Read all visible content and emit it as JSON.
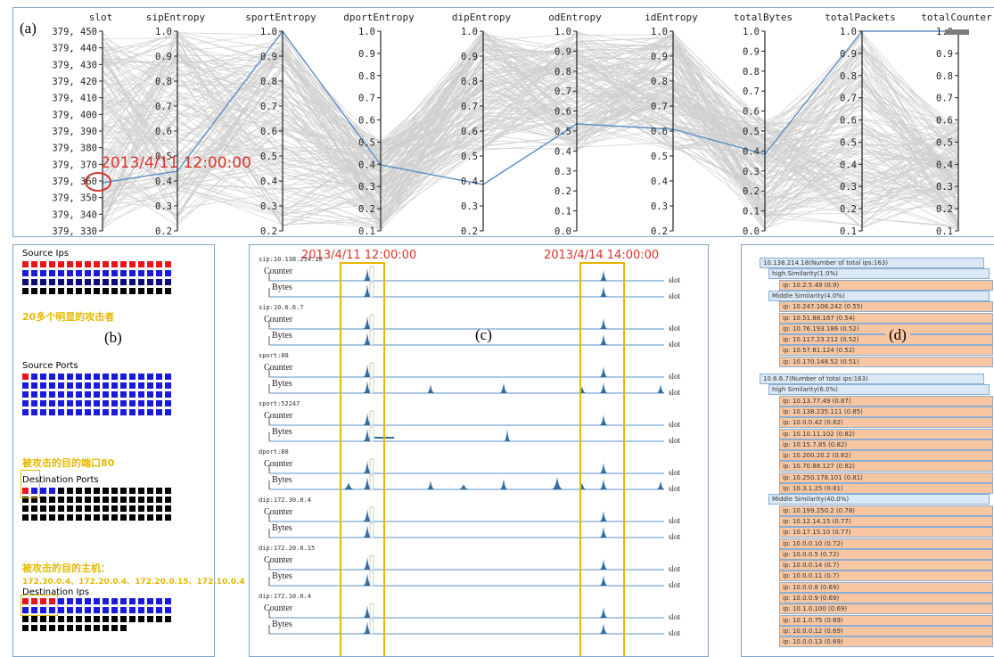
{
  "panel_labels": {
    "a": "(a)",
    "b": "(b)",
    "c": "(c)",
    "d": "(d)"
  },
  "parallel": {
    "axes": [
      {
        "name": "slot",
        "ticks": [
          "379, 450",
          "379, 440",
          "379, 430",
          "379, 420",
          "379, 410",
          "379, 400",
          "379, 390",
          "379, 380",
          "379, 370",
          "379, 360",
          "379, 350",
          "379, 340",
          "379, 330"
        ]
      },
      {
        "name": "sipEntropy",
        "ticks": [
          "1.0",
          "0.9",
          "0.8",
          "0.7",
          "0.6",
          "0.5",
          "0.4",
          "0.3",
          "0.2"
        ]
      },
      {
        "name": "sportEntropy",
        "ticks": [
          "1.0",
          "0.9",
          "0.8",
          "0.7",
          "0.6",
          "0.5",
          "0.4",
          "0.3",
          "0.2"
        ]
      },
      {
        "name": "dportEntropy",
        "ticks": [
          "1.0",
          "0.9",
          "0.8",
          "0.7",
          "0.6",
          "0.5",
          "0.4",
          "0.3",
          "0.2",
          "0.1"
        ]
      },
      {
        "name": "dipEntropy",
        "ticks": [
          "1.0",
          "0.9",
          "0.8",
          "0.7",
          "0.6",
          "0.5",
          "0.4",
          "0.3",
          "0.2"
        ]
      },
      {
        "name": "odEntropy",
        "ticks": [
          "1.0",
          "0.9",
          "0.8",
          "0.7",
          "0.6",
          "0.5",
          "0.4",
          "0.3",
          "0.2",
          "0.1",
          "0.0"
        ]
      },
      {
        "name": "idEntropy",
        "ticks": [
          "1.0",
          "0.9",
          "0.8",
          "0.7",
          "0.6",
          "0.5",
          "0.4",
          "0.3",
          "0.2"
        ]
      },
      {
        "name": "totalBytes",
        "ticks": [
          "1.0",
          "0.9",
          "0.8",
          "0.7",
          "0.6",
          "0.5",
          "0.4",
          "0.3",
          "0.2",
          "0.1",
          "0.0"
        ]
      },
      {
        "name": "totalPackets",
        "ticks": [
          "1.0",
          "0.9",
          "0.8",
          "0.7",
          "0.6",
          "0.5",
          "0.4",
          "0.3",
          "0.2",
          "0.1"
        ]
      },
      {
        "name": "totalCounter",
        "ticks": [
          "1.0",
          "0.9",
          "0.8",
          "0.7",
          "0.6",
          "0.5",
          "0.4",
          "0.3",
          "0.2",
          "0.1"
        ]
      }
    ],
    "highlight_label": "2013/4/11   12:00:00",
    "line_color": "#5b8fc7",
    "circle_color": "#d9342b"
  },
  "matrix": {
    "source_ips_title": "Source Ips",
    "source_ips_note": "20多个明显的攻击者",
    "source_ports_title": "Source Ports",
    "dest_ports_note": "被攻击的目的端口80",
    "dest_ports_title": "Destination Ports",
    "dest_hosts_note": "被攻击的目的主机：",
    "dest_hosts_list": "172.30.0.4、172.20.0.4、172.20.0.15、172.10.0.4",
    "dest_ips_title": "Destination Ips"
  },
  "timeline": {
    "time1": "2013/4/11  12:00:00",
    "time2": "2013/4/14  14:00:00",
    "counter_label": "Counter",
    "bytes_label": "Bytes",
    "slot_label": "slot",
    "groups": [
      {
        "title": "sip:10.138.214.18"
      },
      {
        "title": "sip:10.6.6.7"
      },
      {
        "title": "sport:80"
      },
      {
        "title": "sport:52247"
      },
      {
        "title": "dport:80"
      },
      {
        "title": "dip:172.30.0.4"
      },
      {
        "title": "dip:172.20.0.15"
      },
      {
        "title": "dip:172.10.0.4"
      }
    ]
  },
  "similarity": {
    "groups": [
      {
        "header": "10.138.214.18(Number of total ips:163)",
        "sections": [
          {
            "title": "high Similarity(1.0%)",
            "items": [
              "ip: 10.2.5.49 (0.9)"
            ]
          },
          {
            "title": "Middle Similarity(4.0%)",
            "items": [
              "ip: 10.247.106.242 (0.55)",
              "ip: 10.51.88.167 (0.54)",
              "ip: 10.76.193.186 (0.52)",
              "ip: 10.117.23.212 (0.52)",
              "ip: 10.57.81.124 (0.52)",
              "ip: 10.170.148.52 (0.51)"
            ]
          }
        ]
      },
      {
        "header": "10.6.6.7(Number of total ips:163)",
        "sections": [
          {
            "title": "high Similarity(6.0%)",
            "items": [
              "ip: 10.13.77.49 (0.87)",
              "ip: 10.138.235.111 (0.85)",
              "ip: 10.0.0.42 (0.82)",
              "ip: 10.10.11.102 (0.82)",
              "ip: 10.15.7.85 (0.82)",
              "ip: 10.200.20.2 (0.82)",
              "ip: 10.70.88.127 (0.82)",
              "ip: 10.250.178.101 (0.81)",
              "ip: 10.3.1.25 (0.81)"
            ]
          },
          {
            "title": "Middle Similarity(40.0%)",
            "items": [
              "ip: 10.199.250.2 (0.78)",
              "ip: 10.12.14.15 (0.77)",
              "ip: 10.17.15.10 (0.77)",
              "ip: 10.0.0.10 (0.72)",
              "ip: 10.0.0.5 (0.72)",
              "ip: 10.0.0.14 (0.7)",
              "ip: 10.0.0.11 (0.7)",
              "ip: 10.0.0.8 (0.69)",
              "ip: 10.0.0.9 (0.69)",
              "ip: 10.1.0.100 (0.69)",
              "ip: 10.1.0.75 (0.69)",
              "ip: 10.0.0.12 (0.69)",
              "ip: 10.0.0.13 (0.69)"
            ]
          }
        ]
      }
    ]
  }
}
